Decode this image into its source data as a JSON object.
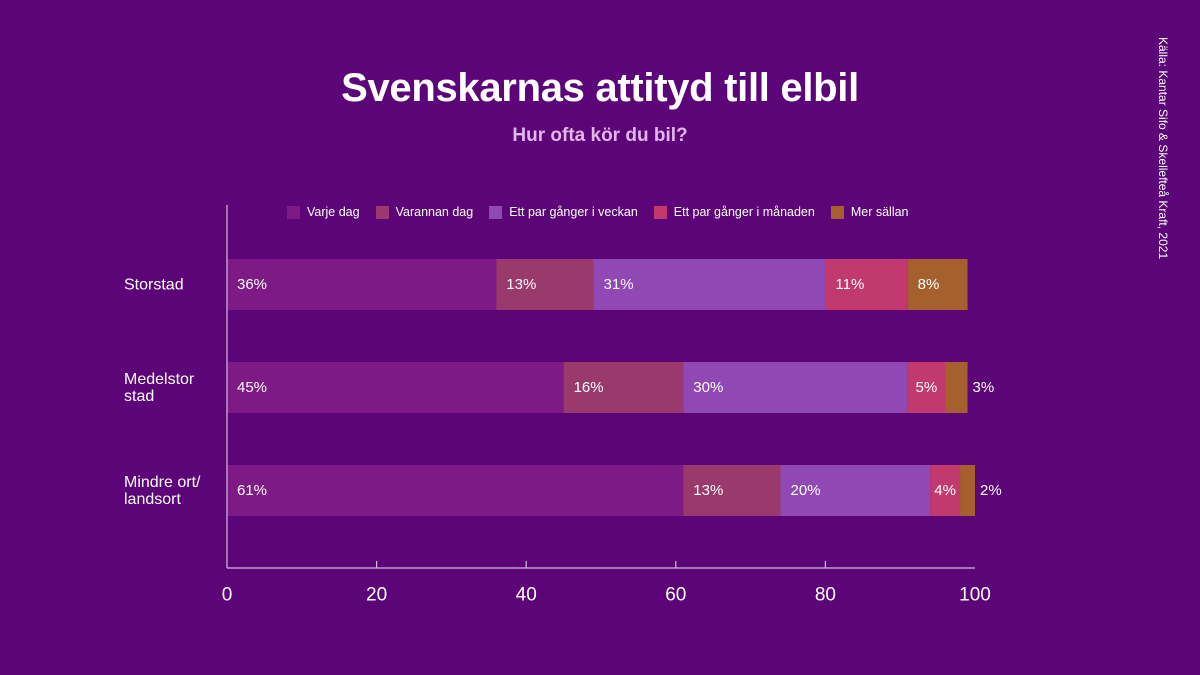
{
  "colors": {
    "background": "#5c0578",
    "text": "#ffffff",
    "subtitle": "#e2b6ea",
    "axis": "#d3bade"
  },
  "chart_data": {
    "type": "bar",
    "orientation": "horizontal",
    "stacked": true,
    "title": "Svenskarnas attityd till elbil",
    "subtitle": "Hur ofta kör du bil?",
    "source": "Källa: Kantar Sifo & Skellefteå Kraft, 2021",
    "categories": [
      "Storstad",
      "Medelstor\nstad",
      "Mindre ort/\nlandsort"
    ],
    "series": [
      {
        "name": "Varje dag",
        "color": "#7d1a86",
        "values": [
          36,
          45,
          61
        ]
      },
      {
        "name": "Varannan dag",
        "color": "#9a3a6c",
        "values": [
          13,
          16,
          13
        ]
      },
      {
        "name": "Ett par gånger i veckan",
        "color": "#9048b5",
        "values": [
          31,
          30,
          20
        ]
      },
      {
        "name": "Ett par gånger i månaden",
        "color": "#c2396f",
        "values": [
          11,
          5,
          4
        ]
      },
      {
        "name": "Mer sällan",
        "color": "#a5602e",
        "values": [
          8,
          3,
          2
        ]
      }
    ],
    "data_label_suffix": "%",
    "xlim": [
      0,
      100
    ],
    "xticks": [
      0,
      20,
      40,
      60,
      80,
      100
    ],
    "grid": false,
    "legend_position": "top"
  }
}
